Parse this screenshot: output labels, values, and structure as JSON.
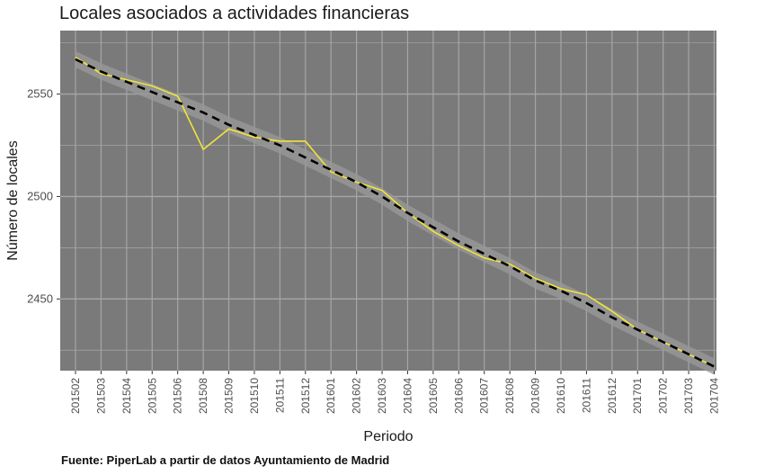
{
  "chart_data": {
    "type": "line",
    "title": "Locales asociados a actividades financieras",
    "xlabel": "Periodo",
    "ylabel": "Número de locales",
    "categories": [
      "201502",
      "201503",
      "201504",
      "201505",
      "201506",
      "201508",
      "201509",
      "201510",
      "201511",
      "201512",
      "201601",
      "201602",
      "201603",
      "201604",
      "201605",
      "201606",
      "201607",
      "201608",
      "201609",
      "201610",
      "201611",
      "201612",
      "201701",
      "201702",
      "201703",
      "201704"
    ],
    "series": [
      {
        "style": "solid",
        "color": "#f2e33a",
        "values": [
          2568,
          2560,
          2557,
          2554,
          2549,
          2523,
          2533,
          2529,
          2527,
          2527,
          2512,
          2507,
          2503,
          2492,
          2483,
          2476,
          2470,
          2467,
          2460,
          2455,
          2452,
          2444,
          2435,
          2429,
          2423,
          2417
        ]
      },
      {
        "style": "dashed",
        "color": "#000000",
        "values": [
          2567,
          2561,
          2556,
          2551,
          2546,
          2541,
          2535,
          2530,
          2525,
          2519,
          2513,
          2507,
          2500,
          2492,
          2485,
          2478,
          2472,
          2466,
          2459,
          2454,
          2448,
          2441,
          2435,
          2429,
          2423,
          2417
        ]
      }
    ],
    "ylim": [
      2415,
      2581
    ],
    "yticks": [
      2450,
      2500,
      2550
    ],
    "grid": true,
    "background": "#7a7a7a",
    "band_color": "#999999"
  },
  "footer": {
    "source": "Fuente: PiperLab a partir de datos Ayuntamiento de Madrid"
  }
}
